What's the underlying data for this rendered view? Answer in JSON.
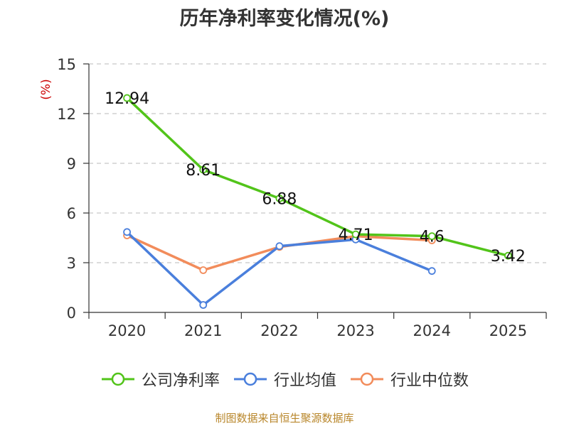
{
  "chart_data": {
    "type": "line",
    "title": "历年净利率变化情况(%)",
    "ylabel": "(%)",
    "categories": [
      "2020",
      "2021",
      "2022",
      "2023",
      "2024",
      "2025"
    ],
    "ylim": [
      0,
      15
    ],
    "yticks": [
      0,
      3,
      6,
      9,
      12,
      15
    ],
    "grid": true,
    "legend_position": "bottom",
    "series": [
      {
        "name": "公司净利率",
        "color": "#52c41a",
        "values": [
          12.94,
          8.61,
          6.88,
          4.71,
          4.6,
          3.42
        ],
        "show_labels": true
      },
      {
        "name": "行业均值",
        "color": "#4a7fdc",
        "values": [
          4.85,
          0.45,
          4.0,
          4.4,
          2.5,
          null
        ],
        "show_labels": false
      },
      {
        "name": "行业中位数",
        "color": "#f28c5b",
        "values": [
          4.65,
          2.55,
          3.95,
          4.6,
          4.35,
          null
        ],
        "show_labels": false
      }
    ],
    "data_labels": [
      "12.94",
      "8.61",
      "6.88",
      "4.71",
      "4.6",
      "3.42"
    ]
  },
  "source": "制图数据来自恒生聚源数据库"
}
